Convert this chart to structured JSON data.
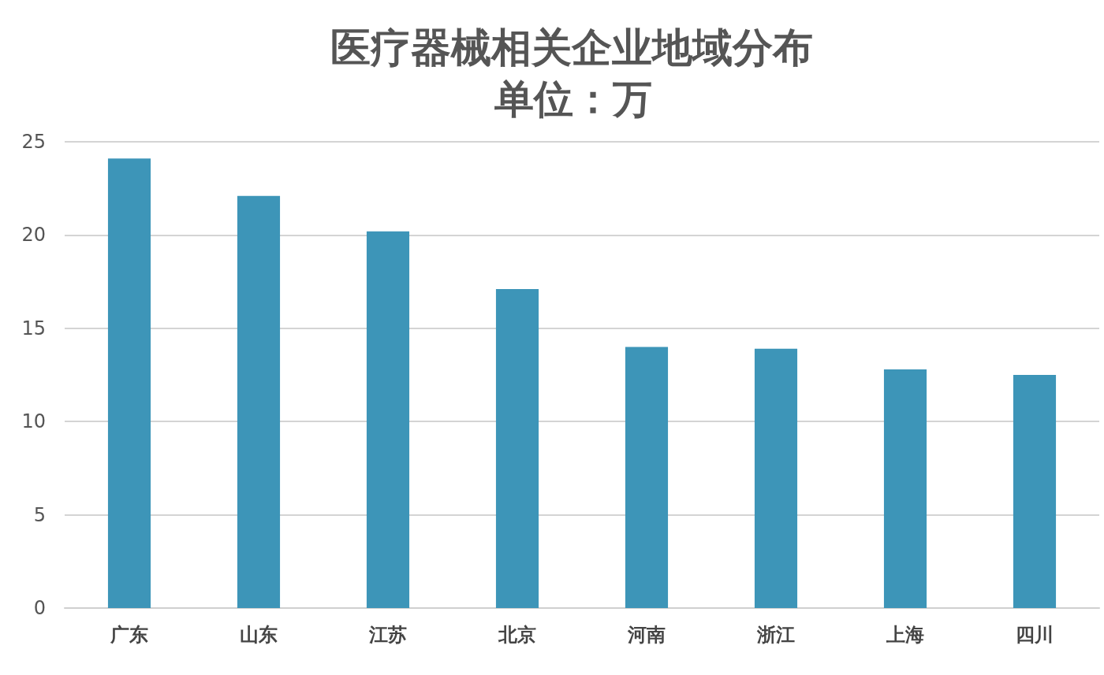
{
  "chart_data": {
    "type": "bar",
    "title": "医疗器械相关企业地域分布",
    "subtitle": "单位：万",
    "categories": [
      "广东",
      "山东",
      "江苏",
      "北京",
      "河南",
      "浙江",
      "上海",
      "四川"
    ],
    "values": [
      24.1,
      22.1,
      20.2,
      17.1,
      14.0,
      13.9,
      12.8,
      12.5
    ],
    "color": "#3d95b8",
    "ylim": [
      0,
      25
    ],
    "yticks": [
      0,
      5,
      10,
      15,
      20,
      25
    ],
    "grid": "y"
  }
}
